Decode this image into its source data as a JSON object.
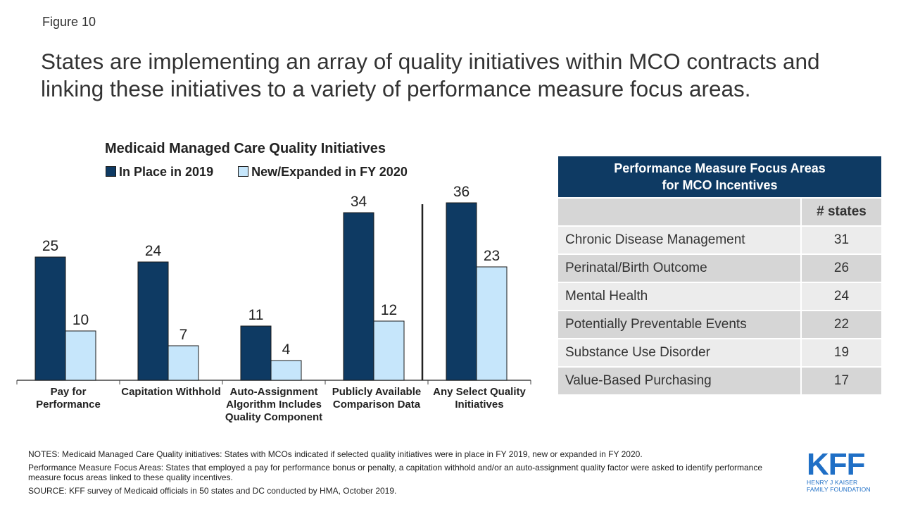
{
  "figure_label": "Figure 10",
  "headline": "States are implementing an array of quality initiatives within MCO contracts and linking these initiatives to a variety of performance measure focus areas.",
  "chart_data": {
    "type": "bar",
    "title": "Medicaid Managed Care Quality Initiatives",
    "categories": [
      "Pay for Performance",
      "Capitation Withhold",
      "Auto-Assignment Algorithm Includes Quality Component",
      "Publicly Available Comparison Data",
      "Any Select Quality Initiatives"
    ],
    "series": [
      {
        "name": "In Place in 2019",
        "color": "#0e3a63",
        "values": [
          25,
          24,
          11,
          34,
          36
        ]
      },
      {
        "name": "New/Expanded in FY 2020",
        "color": "#c6e6fb",
        "values": [
          10,
          7,
          4,
          12,
          23
        ]
      }
    ],
    "ylim": [
      0,
      36
    ],
    "grid": false,
    "legend_position": "top-left",
    "divider_before_category": 4,
    "xlabel": "",
    "ylabel": ""
  },
  "table": {
    "title_line1": "Performance Measure Focus Areas",
    "title_line2": "for MCO Incentives",
    "column_header": "# states",
    "rows": [
      {
        "label": "Chronic Disease Management",
        "value": "31"
      },
      {
        "label": "Perinatal/Birth Outcome",
        "value": "26"
      },
      {
        "label": "Mental Health",
        "value": "24"
      },
      {
        "label": "Potentially Preventable Events",
        "value": "22"
      },
      {
        "label": "Substance Use Disorder",
        "value": "19"
      },
      {
        "label": "Value-Based Purchasing",
        "value": "17"
      }
    ]
  },
  "notes": {
    "line1": "NOTES: Medicaid Managed Care Quality initiatives: States with MCOs indicated if selected quality initiatives were in place in FY 2019, new or expanded in FY 2020.",
    "line2": "Performance Measure Focus Areas: States that employed a pay for performance bonus or penalty, a capitation withhold and/or an auto-assignment quality factor were asked to identify performance measure focus areas linked to these quality incentives.",
    "line3": "SOURCE: KFF survey of Medicaid officials in 50 states and DC conducted by HMA, October 2019."
  },
  "logo": {
    "text": "KFF",
    "sub1": "HENRY J KAISER",
    "sub2": "FAMILY FOUNDATION",
    "color": "#1f6fc6"
  }
}
